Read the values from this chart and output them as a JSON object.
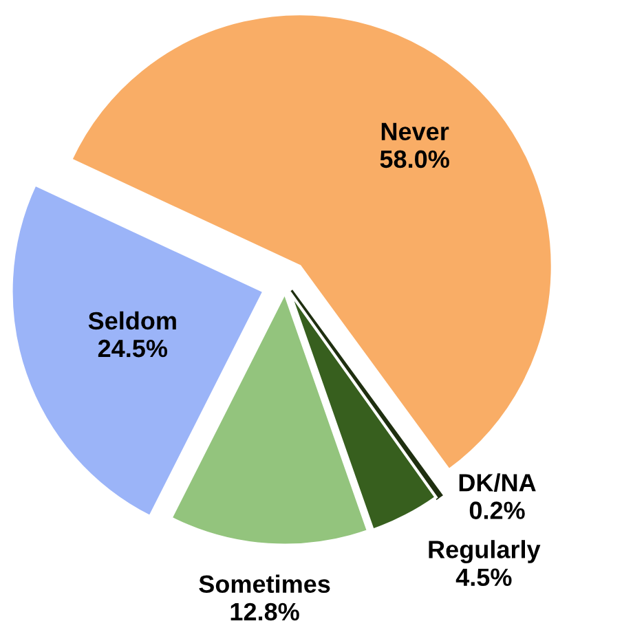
{
  "chart_data": {
    "type": "pie",
    "categories": [
      "Never",
      "DK/NA",
      "Regularly",
      "Sometimes",
      "Seldom"
    ],
    "values": [
      58.0,
      0.2,
      4.5,
      12.8,
      24.5
    ],
    "colors": [
      "#f9ad66",
      "#1f2f10",
      "#375f1e",
      "#93c47d",
      "#9bb4f8"
    ],
    "value_labels": [
      "58.0%",
      "0.2%",
      "4.5%",
      "12.8%",
      "24.5%"
    ],
    "data_labels": true,
    "legend": false
  }
}
